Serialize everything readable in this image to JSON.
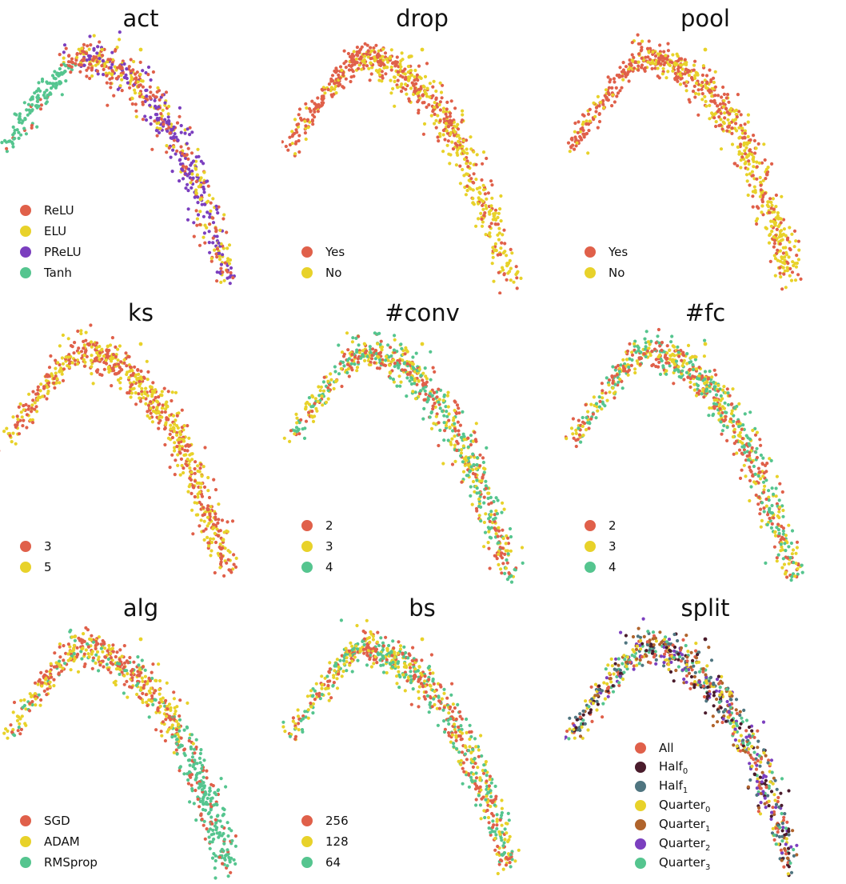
{
  "chart_data": [
    {
      "type": "scatter",
      "title": "act",
      "series": [
        {
          "name": "ReLU",
          "color": "#e0604a"
        },
        {
          "name": "ELU",
          "color": "#e8d22a"
        },
        {
          "name": "PReLU",
          "color": "#7b3fbf"
        },
        {
          "name": "Tanh",
          "color": "#55c58f"
        }
      ],
      "legend_position": "bottom-left"
    },
    {
      "type": "scatter",
      "title": "drop",
      "series": [
        {
          "name": "Yes",
          "color": "#e0604a"
        },
        {
          "name": "No",
          "color": "#e8d22a"
        }
      ],
      "legend_position": "bottom-left"
    },
    {
      "type": "scatter",
      "title": "pool",
      "series": [
        {
          "name": "Yes",
          "color": "#e0604a"
        },
        {
          "name": "No",
          "color": "#e8d22a"
        }
      ],
      "legend_position": "bottom-left"
    },
    {
      "type": "scatter",
      "title": "ks",
      "series": [
        {
          "name": "3",
          "color": "#e0604a"
        },
        {
          "name": "5",
          "color": "#e8d22a"
        }
      ],
      "legend_position": "bottom-left"
    },
    {
      "type": "scatter",
      "title": "#conv",
      "series": [
        {
          "name": "2",
          "color": "#e0604a"
        },
        {
          "name": "3",
          "color": "#e8d22a"
        },
        {
          "name": "4",
          "color": "#55c58f"
        }
      ],
      "legend_position": "bottom-left"
    },
    {
      "type": "scatter",
      "title": "#fc",
      "series": [
        {
          "name": "2",
          "color": "#e0604a"
        },
        {
          "name": "3",
          "color": "#e8d22a"
        },
        {
          "name": "4",
          "color": "#55c58f"
        }
      ],
      "legend_position": "bottom-left"
    },
    {
      "type": "scatter",
      "title": "alg",
      "series": [
        {
          "name": "SGD",
          "color": "#e0604a"
        },
        {
          "name": "ADAM",
          "color": "#e8d22a"
        },
        {
          "name": "RMSprop",
          "color": "#55c58f"
        }
      ],
      "legend_position": "bottom-left"
    },
    {
      "type": "scatter",
      "title": "bs",
      "series": [
        {
          "name": "256",
          "color": "#e0604a"
        },
        {
          "name": "128",
          "color": "#e8d22a"
        },
        {
          "name": "64",
          "color": "#55c58f"
        }
      ],
      "legend_position": "bottom-left"
    },
    {
      "type": "scatter",
      "title": "split",
      "series": [
        {
          "name": "All",
          "color": "#e0604a"
        },
        {
          "name": "Half",
          "sub": "0",
          "color": "#4a1c2c"
        },
        {
          "name": "Half",
          "sub": "1",
          "color": "#4f7580"
        },
        {
          "name": "Quarter",
          "sub": "0",
          "color": "#e8d22a"
        },
        {
          "name": "Quarter",
          "sub": "1",
          "color": "#b0642c"
        },
        {
          "name": "Quarter",
          "sub": "2",
          "color": "#7b3fbf"
        },
        {
          "name": "Quarter",
          "sub": "3",
          "color": "#55c58f"
        }
      ],
      "legend_position": "center"
    }
  ]
}
